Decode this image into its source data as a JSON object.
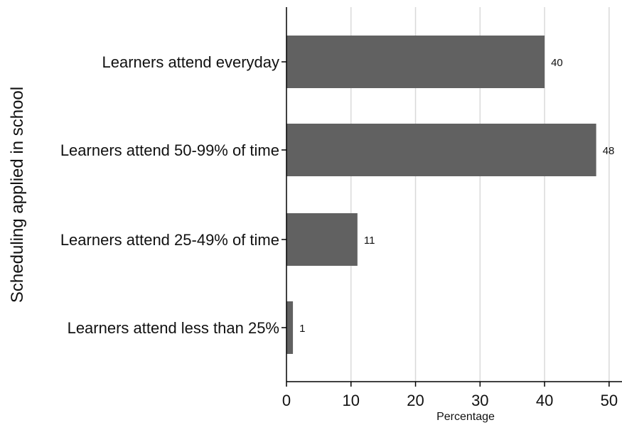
{
  "chart_data": {
    "type": "bar",
    "orientation": "horizontal",
    "categories": [
      "Learners attend everyday",
      "Learners attend 50-99% of time",
      "Learners attend 25-49% of time",
      "Learners attend less than 25%"
    ],
    "values": [
      40,
      48,
      11,
      1
    ],
    "value_labels": [
      "40",
      "48",
      "11",
      "1"
    ],
    "xlabel": "Percentage",
    "ylabel": "Scheduling applied in school",
    "xlim": [
      0,
      52
    ],
    "xticks": [
      0,
      10,
      20,
      30,
      40,
      50
    ],
    "xtick_labels": [
      "0",
      "10",
      "20",
      "30",
      "40",
      "50"
    ],
    "grid": "vertical",
    "bar_color": "#616161",
    "grid_color": "#d9d9d9",
    "axis_color": "#000000"
  }
}
